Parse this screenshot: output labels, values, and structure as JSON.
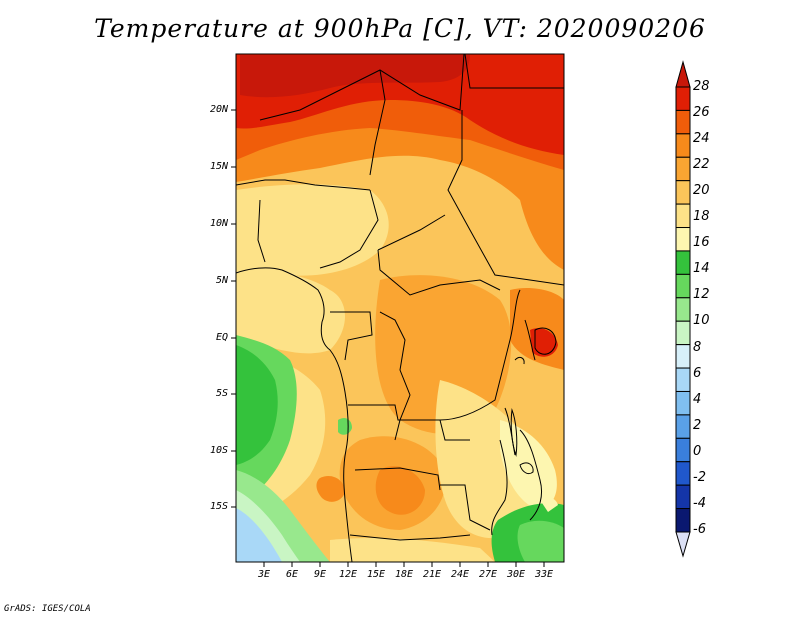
{
  "title": "Temperature at 900hPa [C], VT: 2020090206",
  "credit": "GrADS: IGES/COLA",
  "lat_labels": [
    "20N",
    "15N",
    "10N",
    "5N",
    "EQ",
    "5S",
    "10S",
    "15S"
  ],
  "lon_labels": [
    "3E",
    "6E",
    "9E",
    "12E",
    "15E",
    "18E",
    "21E",
    "24E",
    "27E",
    "30E",
    "33E"
  ],
  "colorbar": {
    "labels": [
      "28",
      "26",
      "24",
      "22",
      "20",
      "18",
      "16",
      "14",
      "12",
      "10",
      "8",
      "6",
      "4",
      "2",
      "0",
      "-2",
      "-4",
      "-6"
    ],
    "colors": [
      "#e01f05",
      "#f05d0a",
      "#f78a1b",
      "#faa532",
      "#fbc55a",
      "#fde288",
      "#fdf6b0",
      "#34c23c",
      "#66d85d",
      "#98e88d",
      "#c9f5c4",
      "#d7f0fa",
      "#a9d8f7",
      "#80bff0",
      "#5aa1e8",
      "#3a7fdc",
      "#2058cc",
      "#1435a8",
      "#0a1870"
    ],
    "over_color": "#c8180a",
    "under_color": "#dce0f5"
  }
}
